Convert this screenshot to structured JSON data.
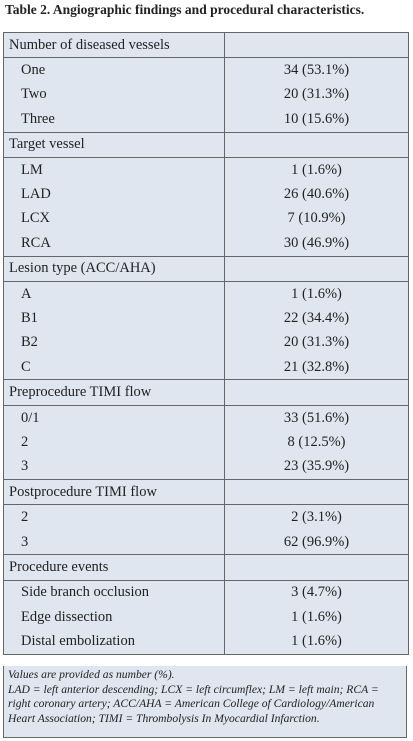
{
  "title": "Table 2. Angiographic findings and procedural characteristics.",
  "table": {
    "sections": [
      {
        "heading": "Number of diseased vessels",
        "rows": [
          [
            "One",
            "34 (53.1%)"
          ],
          [
            "Two",
            "20 (31.3%)"
          ],
          [
            "Three",
            "10 (15.6%)"
          ]
        ]
      },
      {
        "heading": "Target vessel",
        "rows": [
          [
            "LM",
            "1 (1.6%)"
          ],
          [
            "LAD",
            "26 (40.6%)"
          ],
          [
            "LCX",
            "7 (10.9%)"
          ],
          [
            "RCA",
            "30 (46.9%)"
          ]
        ]
      },
      {
        "heading": "Lesion type (ACC/AHA)",
        "rows": [
          [
            "A",
            "1 (1.6%)"
          ],
          [
            "B1",
            "22 (34.4%)"
          ],
          [
            "B2",
            "20 (31.3%)"
          ],
          [
            "C",
            "21 (32.8%)"
          ]
        ]
      },
      {
        "heading": "Preprocedure TIMI flow",
        "rows": [
          [
            "0/1",
            "33 (51.6%)"
          ],
          [
            "2",
            "8 (12.5%)"
          ],
          [
            "3",
            "23 (35.9%)"
          ]
        ]
      },
      {
        "heading": "Postprocedure TIMI flow",
        "rows": [
          [
            "2",
            "2 (3.1%)"
          ],
          [
            "3",
            "62 (96.9%)"
          ]
        ]
      },
      {
        "heading": "Procedure events",
        "rows": [
          [
            "Side branch occlusion",
            "3 (4.7%)"
          ],
          [
            "Edge dissection",
            "1 (1.6%)"
          ],
          [
            "Distal embolization",
            "1 (1.6%)"
          ]
        ]
      }
    ]
  },
  "footnote": [
    "Values are provided as number (%).",
    "LAD = left anterior descending; LCX = left circumflex; LM = left main; RCA = right coronary artery; ACC/AHA = American College of Cardiology/American Heart Association; TIMI = Thrombolysis In Myocardial Infarction."
  ]
}
